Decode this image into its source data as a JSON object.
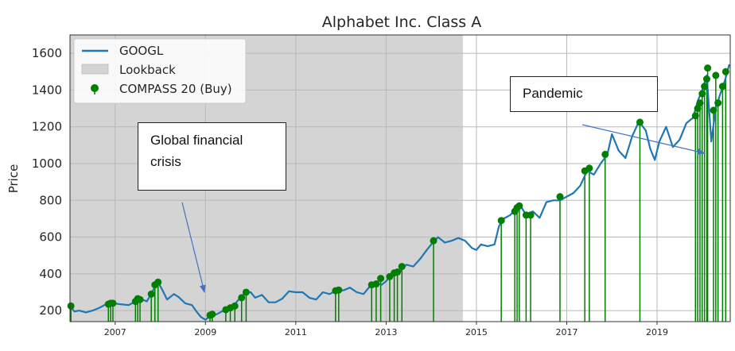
{
  "chart_data": {
    "type": "line",
    "title": "Alphabet Inc. Class A",
    "xlabel": "",
    "ylabel": "Price",
    "xlim": [
      2006.0,
      2020.62
    ],
    "ylim": [
      140,
      1700
    ],
    "x_ticks": [
      2007,
      2009,
      2011,
      2013,
      2015,
      2017,
      2019
    ],
    "y_ticks": [
      200,
      400,
      600,
      800,
      1000,
      1200,
      1400,
      1600
    ],
    "grid": true,
    "legend_position": "top-left",
    "lookback": {
      "label": "Lookback",
      "start": 2006.0,
      "end": 2014.7,
      "color": "#d4d4d4"
    },
    "series": [
      {
        "name": "GOOGL",
        "color": "#1f77b4",
        "points": [
          [
            2006.0,
            225
          ],
          [
            2006.1,
            195
          ],
          [
            2006.2,
            200
          ],
          [
            2006.35,
            190
          ],
          [
            2006.5,
            200
          ],
          [
            2006.65,
            215
          ],
          [
            2006.8,
            235
          ],
          [
            2006.95,
            240
          ],
          [
            2007.1,
            235
          ],
          [
            2007.3,
            230
          ],
          [
            2007.45,
            250
          ],
          [
            2007.6,
            260
          ],
          [
            2007.7,
            250
          ],
          [
            2007.8,
            290
          ],
          [
            2007.9,
            340
          ],
          [
            2007.95,
            355
          ],
          [
            2008.05,
            310
          ],
          [
            2008.15,
            260
          ],
          [
            2008.3,
            290
          ],
          [
            2008.4,
            275
          ],
          [
            2008.55,
            240
          ],
          [
            2008.7,
            230
          ],
          [
            2008.8,
            195
          ],
          [
            2008.9,
            165
          ],
          [
            2009.0,
            150
          ],
          [
            2009.1,
            170
          ],
          [
            2009.25,
            180
          ],
          [
            2009.4,
            200
          ],
          [
            2009.5,
            210
          ],
          [
            2009.6,
            220
          ],
          [
            2009.75,
            265
          ],
          [
            2009.9,
            300
          ],
          [
            2010.0,
            300
          ],
          [
            2010.1,
            270
          ],
          [
            2010.25,
            285
          ],
          [
            2010.4,
            245
          ],
          [
            2010.55,
            245
          ],
          [
            2010.7,
            265
          ],
          [
            2010.85,
            305
          ],
          [
            2011.0,
            300
          ],
          [
            2011.15,
            300
          ],
          [
            2011.3,
            270
          ],
          [
            2011.45,
            260
          ],
          [
            2011.6,
            300
          ],
          [
            2011.75,
            290
          ],
          [
            2011.9,
            310
          ],
          [
            2012.05,
            310
          ],
          [
            2012.2,
            325
          ],
          [
            2012.35,
            300
          ],
          [
            2012.5,
            290
          ],
          [
            2012.65,
            335
          ],
          [
            2012.8,
            350
          ],
          [
            2012.9,
            340
          ],
          [
            2013.0,
            360
          ],
          [
            2013.15,
            405
          ],
          [
            2013.3,
            410
          ],
          [
            2013.45,
            450
          ],
          [
            2013.6,
            440
          ],
          [
            2013.75,
            480
          ],
          [
            2013.9,
            530
          ],
          [
            2014.05,
            575
          ],
          [
            2014.15,
            600
          ],
          [
            2014.3,
            570
          ],
          [
            2014.45,
            580
          ],
          [
            2014.6,
            595
          ],
          [
            2014.75,
            580
          ],
          [
            2014.9,
            540
          ],
          [
            2015.0,
            530
          ],
          [
            2015.1,
            560
          ],
          [
            2015.25,
            550
          ],
          [
            2015.4,
            560
          ],
          [
            2015.5,
            660
          ],
          [
            2015.6,
            700
          ],
          [
            2015.75,
            720
          ],
          [
            2015.9,
            760
          ],
          [
            2016.0,
            760
          ],
          [
            2016.1,
            720
          ],
          [
            2016.25,
            740
          ],
          [
            2016.4,
            705
          ],
          [
            2016.55,
            790
          ],
          [
            2016.7,
            800
          ],
          [
            2016.85,
            800
          ],
          [
            2017.0,
            820
          ],
          [
            2017.15,
            840
          ],
          [
            2017.3,
            880
          ],
          [
            2017.45,
            960
          ],
          [
            2017.6,
            940
          ],
          [
            2017.75,
            1000
          ],
          [
            2017.9,
            1050
          ],
          [
            2018.0,
            1160
          ],
          [
            2018.15,
            1070
          ],
          [
            2018.3,
            1030
          ],
          [
            2018.45,
            1150
          ],
          [
            2018.6,
            1230
          ],
          [
            2018.75,
            1180
          ],
          [
            2018.85,
            1080
          ],
          [
            2018.95,
            1020
          ],
          [
            2019.05,
            1120
          ],
          [
            2019.2,
            1200
          ],
          [
            2019.35,
            1090
          ],
          [
            2019.5,
            1130
          ],
          [
            2019.65,
            1220
          ],
          [
            2019.8,
            1250
          ],
          [
            2019.9,
            1340
          ],
          [
            2020.0,
            1400
          ],
          [
            2020.1,
            1480
          ],
          [
            2020.2,
            1120
          ],
          [
            2020.3,
            1300
          ],
          [
            2020.4,
            1380
          ],
          [
            2020.5,
            1450
          ],
          [
            2020.6,
            1540
          ]
        ]
      },
      {
        "name": "COMPASS 20 (Buy)",
        "color": "#007f00",
        "points": [
          [
            2006.02,
            225
          ],
          [
            2006.85,
            235
          ],
          [
            2006.9,
            240
          ],
          [
            2006.95,
            240
          ],
          [
            2007.45,
            250
          ],
          [
            2007.5,
            265
          ],
          [
            2007.55,
            260
          ],
          [
            2007.8,
            290
          ],
          [
            2007.88,
            340
          ],
          [
            2007.95,
            355
          ],
          [
            2009.1,
            175
          ],
          [
            2009.15,
            180
          ],
          [
            2009.45,
            205
          ],
          [
            2009.55,
            215
          ],
          [
            2009.65,
            225
          ],
          [
            2009.8,
            270
          ],
          [
            2009.9,
            300
          ],
          [
            2011.88,
            308
          ],
          [
            2011.95,
            312
          ],
          [
            2012.68,
            340
          ],
          [
            2012.78,
            345
          ],
          [
            2012.88,
            375
          ],
          [
            2013.08,
            385
          ],
          [
            2013.18,
            405
          ],
          [
            2013.25,
            410
          ],
          [
            2013.35,
            440
          ],
          [
            2014.05,
            580
          ],
          [
            2015.55,
            690
          ],
          [
            2015.85,
            740
          ],
          [
            2015.9,
            760
          ],
          [
            2015.95,
            770
          ],
          [
            2016.1,
            720
          ],
          [
            2016.2,
            720
          ],
          [
            2016.85,
            820
          ],
          [
            2017.4,
            960
          ],
          [
            2017.5,
            975
          ],
          [
            2017.85,
            1050
          ],
          [
            2018.62,
            1225
          ],
          [
            2019.85,
            1260
          ],
          [
            2019.9,
            1300
          ],
          [
            2019.95,
            1330
          ],
          [
            2020.0,
            1380
          ],
          [
            2020.05,
            1420
          ],
          [
            2020.1,
            1460
          ],
          [
            2020.12,
            1520
          ],
          [
            2020.25,
            1290
          ],
          [
            2020.3,
            1480
          ],
          [
            2020.35,
            1330
          ],
          [
            2020.45,
            1420
          ],
          [
            2020.52,
            1500
          ]
        ]
      }
    ],
    "annotations": [
      {
        "text": "Global financial crisis"
      },
      {
        "text": "Pandemic"
      }
    ]
  }
}
